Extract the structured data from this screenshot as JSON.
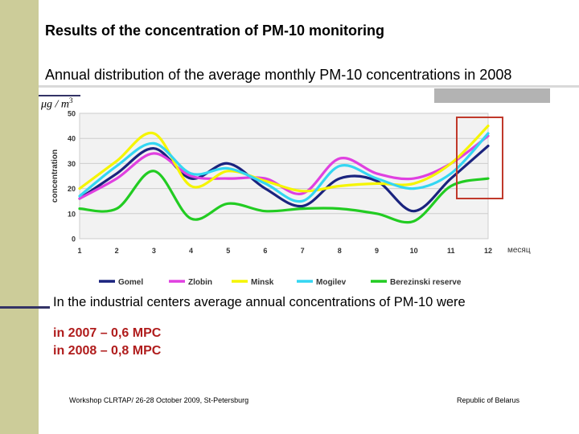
{
  "slide": {
    "title": "Results of the concentration of PM-10 monitoring",
    "subtitle": "Annual distribution of the average monthly PM-10 concentrations in 2008",
    "unit_label": "μg / m",
    "unit_superscript": "3",
    "body_text": "In the industrial centers  average annual concentrations of PM-10 were",
    "mpc_2007": "in 2007  – 0,6 MPC",
    "mpc_2008": "in 2008  – 0,8 MPC",
    "footer_left": "Workshop CLRTAP/ 26-28 October 2009, St-Petersburg",
    "footer_right": "Republic of Belarus"
  },
  "colors": {
    "highlight_box": "#c0392b",
    "mpc_text": "#b01c1c"
  },
  "chart_data": {
    "type": "line",
    "title": "",
    "xlabel": "месяц",
    "ylabel": "concentration",
    "x": [
      1,
      2,
      3,
      4,
      5,
      6,
      7,
      8,
      9,
      10,
      11,
      12
    ],
    "x_tick_labels": [
      "1",
      "2",
      "3",
      "4",
      "5",
      "6",
      "7",
      "8",
      "9",
      "10",
      "11",
      "12"
    ],
    "y_ticks": [
      0,
      10,
      20,
      30,
      40,
      50
    ],
    "y_tick_labels": [
      "0",
      "10",
      "20",
      "30",
      "40",
      "50"
    ],
    "ylim": [
      0,
      50
    ],
    "grid": true,
    "legend_position": "bottom",
    "highlight_months": [
      11,
      12
    ],
    "series": [
      {
        "name": "Gomel",
        "color": "#1a237e",
        "values": [
          16,
          26,
          36,
          24,
          30,
          20,
          13,
          24,
          23,
          11,
          24,
          37
        ]
      },
      {
        "name": "Zlobin",
        "color": "#e040e0",
        "values": [
          16,
          24,
          34,
          25,
          24,
          24,
          18,
          32,
          26,
          24,
          30,
          41
        ]
      },
      {
        "name": "Minsk",
        "color": "#f5f500",
        "values": [
          20,
          31,
          42,
          21,
          27,
          23,
          19,
          21,
          22,
          22,
          30,
          45
        ]
      },
      {
        "name": "Mogilev",
        "color": "#33d6f2",
        "values": [
          17,
          29,
          38,
          26,
          28,
          22,
          15,
          29,
          24,
          20,
          26,
          42
        ]
      },
      {
        "name": "Berezinski reserve",
        "color": "#22cc22",
        "values": [
          12,
          12,
          27,
          8,
          14,
          11,
          12,
          12,
          10,
          7,
          21,
          24
        ]
      }
    ]
  }
}
